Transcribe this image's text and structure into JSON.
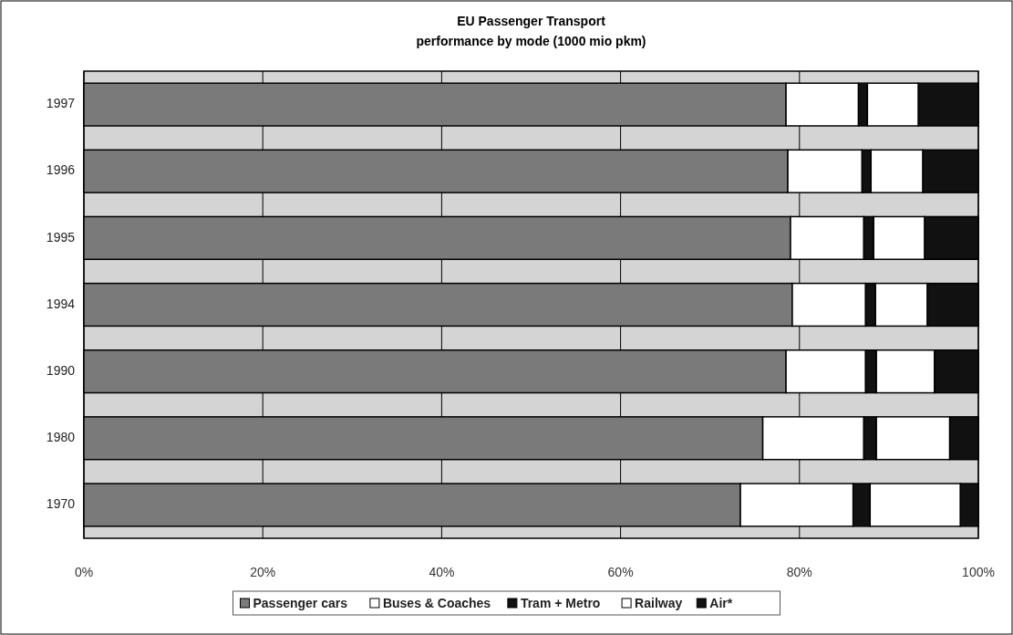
{
  "chart_data": {
    "type": "bar",
    "orientation": "horizontal",
    "stacked": true,
    "title": "EU  Passenger Transport",
    "subtitle": "performance by mode (1000 mio pkm)",
    "categories": [
      "1997",
      "1996",
      "1995",
      "1994",
      "1990",
      "1980",
      "1970"
    ],
    "series": [
      {
        "name": "Passenger cars",
        "color": "#7a7a7a",
        "values": [
          78.5,
          78.7,
          79.0,
          79.2,
          78.5,
          75.9,
          73.4
        ]
      },
      {
        "name": "Buses & Coaches",
        "color": "#ffffff",
        "values": [
          8.1,
          8.3,
          8.2,
          8.2,
          8.9,
          11.3,
          12.6
        ]
      },
      {
        "name": "Tram + Metro",
        "color": "#111111",
        "values": [
          1.0,
          1.0,
          1.1,
          1.1,
          1.2,
          1.4,
          1.9
        ]
      },
      {
        "name": "Railway",
        "color": "#ffffff",
        "values": [
          5.7,
          5.8,
          5.7,
          5.8,
          6.5,
          8.2,
          10.1
        ]
      },
      {
        "name": "Air*",
        "color": "#111111",
        "values": [
          6.7,
          6.2,
          6.0,
          5.7,
          4.9,
          3.2,
          2.0
        ]
      }
    ],
    "xlim": [
      0,
      100
    ],
    "xticks": [
      {
        "value": 0,
        "label": "0%"
      },
      {
        "value": 20,
        "label": "20%"
      },
      {
        "value": 40,
        "label": "40%"
      },
      {
        "value": 60,
        "label": "60%"
      },
      {
        "value": 80,
        "label": "80%"
      },
      {
        "value": 100,
        "label": "100%"
      }
    ],
    "grid": "x",
    "legend": "bottom"
  }
}
